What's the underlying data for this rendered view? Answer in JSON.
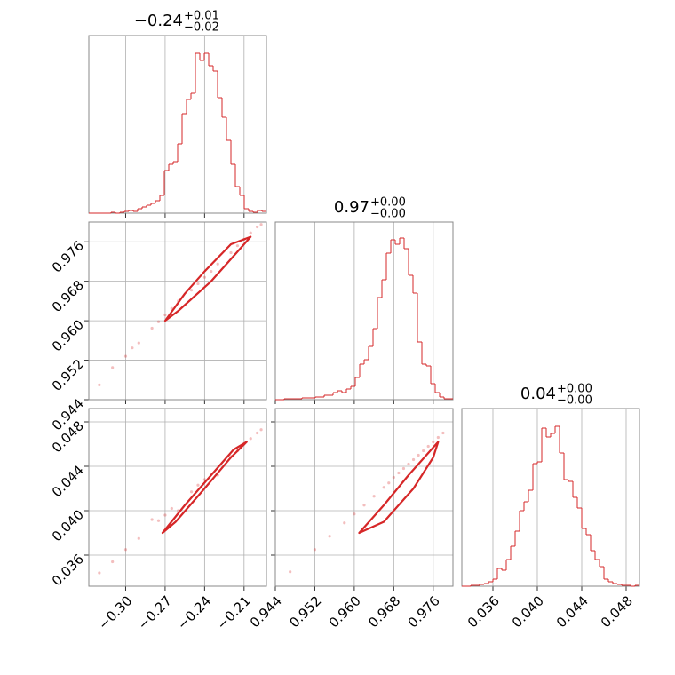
{
  "chart_data": {
    "type": "corner",
    "color": "#d62728",
    "grid": true,
    "params": [
      {
        "title": {
          "value": "−0.24",
          "upper": "+0.01",
          "lower": "−0.02"
        },
        "lim": [
          -0.328,
          -0.193
        ],
        "ticks": [
          {
            "value": -0.3,
            "label": "−0.30"
          },
          {
            "value": -0.27,
            "label": "−0.27"
          },
          {
            "value": -0.24,
            "label": "−0.24"
          },
          {
            "value": -0.21,
            "label": "−0.21"
          }
        ]
      },
      {
        "title": {
          "value": "0.97",
          "upper": "+0.00",
          "lower": "−0.00"
        },
        "lim": [
          0.944,
          0.98
        ],
        "ticks": [
          0.944,
          0.952,
          {
            "value": 0.96,
            "label": "0.960"
          },
          0.968,
          0.976
        ]
      },
      {
        "title": {
          "value": "0.04",
          "upper": "+0.00",
          "lower": "−0.00"
        },
        "lim": [
          0.0332,
          0.0492
        ],
        "ticks": [
          0.036,
          {
            "value": 0.04,
            "label": "0.040"
          },
          0.044,
          0.048
        ]
      }
    ],
    "histograms": [
      {
        "ylim": [
          0,
          200
        ],
        "bins": [
          -0.328,
          -0.324625,
          -0.32125,
          -0.317875,
          -0.3145,
          -0.311125,
          -0.30775,
          -0.304375,
          -0.301,
          -0.297625,
          -0.29425,
          -0.290875,
          -0.2875,
          -0.284125,
          -0.28075,
          -0.277375,
          -0.274,
          -0.270625,
          -0.26725,
          -0.263875,
          -0.2605,
          -0.257125,
          -0.25375,
          -0.250375,
          -0.247,
          -0.243625,
          -0.24025,
          -0.236875,
          -0.2335,
          -0.230125,
          -0.22675,
          -0.223375,
          -0.22,
          -0.216625,
          -0.21325,
          -0.209875,
          -0.2065,
          -0.203125,
          -0.19975,
          -0.196375,
          -0.193
        ],
        "values": [
          0,
          0,
          0,
          0,
          0,
          1,
          0,
          1,
          2,
          3,
          2,
          5,
          7,
          9,
          11,
          14,
          20,
          48,
          55,
          58,
          78,
          112,
          128,
          135,
          180,
          172,
          180,
          166,
          160,
          130,
          108,
          82,
          55,
          30,
          20,
          5,
          2,
          1,
          3,
          2
        ]
      },
      {
        "ylim": [
          0,
          200
        ],
        "bins": [
          0.944,
          0.9449,
          0.9458,
          0.9467,
          0.9476,
          0.9485,
          0.9494,
          0.9503,
          0.9512,
          0.9521,
          0.953,
          0.9539,
          0.9548,
          0.9557,
          0.9566,
          0.9575,
          0.9584,
          0.9593,
          0.9602,
          0.9611,
          0.962,
          0.9629,
          0.9638,
          0.9647,
          0.9656,
          0.9665,
          0.9674,
          0.9683,
          0.9692,
          0.9701,
          0.971,
          0.9719,
          0.9728,
          0.9737,
          0.9746,
          0.9755,
          0.9764,
          0.9773,
          0.9782,
          0.9791,
          0.98
        ],
        "values": [
          0,
          0,
          1,
          1,
          1,
          1,
          2,
          2,
          2,
          3,
          3,
          5,
          5,
          8,
          10,
          8,
          12,
          15,
          25,
          40,
          45,
          60,
          80,
          115,
          135,
          165,
          180,
          175,
          182,
          170,
          140,
          120,
          65,
          40,
          38,
          18,
          8,
          3,
          1,
          1
        ]
      },
      {
        "ylim": [
          0,
          200
        ],
        "bins": [
          0.0332,
          0.0336,
          0.034,
          0.0344,
          0.0348,
          0.0352,
          0.0356,
          0.036,
          0.0364,
          0.0368,
          0.0372,
          0.0376,
          0.038,
          0.0384,
          0.0388,
          0.0392,
          0.0396,
          0.04,
          0.0404,
          0.0408,
          0.0412,
          0.0416,
          0.042,
          0.0424,
          0.0428,
          0.0432,
          0.0436,
          0.044,
          0.0444,
          0.0448,
          0.0452,
          0.0456,
          0.046,
          0.0464,
          0.0468,
          0.0472,
          0.0476,
          0.048,
          0.0484,
          0.0488,
          0.0492
        ],
        "values": [
          0,
          0,
          1,
          1,
          2,
          3,
          5,
          8,
          20,
          18,
          30,
          45,
          62,
          85,
          95,
          108,
          138,
          140,
          178,
          168,
          172,
          180,
          150,
          120,
          118,
          100,
          88,
          65,
          58,
          40,
          30,
          22,
          8,
          5,
          3,
          2,
          1,
          1,
          0,
          1
        ]
      }
    ],
    "pairs": [
      {
        "x": [
          -0.32,
          -0.31,
          -0.3,
          -0.295,
          -0.29,
          -0.28,
          -0.275,
          -0.27,
          -0.265,
          -0.26,
          -0.25,
          -0.245,
          -0.24,
          -0.235,
          -0.23,
          -0.22,
          -0.215,
          -0.21,
          -0.205,
          -0.2,
          -0.197
        ],
        "y": [
          0.947,
          0.9505,
          0.9528,
          0.9545,
          0.9555,
          0.9585,
          0.9598,
          0.9612,
          0.9625,
          0.964,
          0.9662,
          0.9675,
          0.9688,
          0.97,
          0.9715,
          0.9738,
          0.9752,
          0.9765,
          0.9778,
          0.979,
          0.9795
        ],
        "contour": {
          "x": [
            -0.27,
            -0.255,
            -0.24,
            -0.22,
            -0.205,
            -0.215,
            -0.235,
            -0.26
          ],
          "y": [
            0.96,
            0.9655,
            0.97,
            0.9755,
            0.977,
            0.974,
            0.968,
            0.962
          ]
        }
      },
      {
        "x": [
          -0.32,
          -0.31,
          -0.3,
          -0.29,
          -0.28,
          -0.275,
          -0.27,
          -0.265,
          -0.26,
          -0.25,
          -0.245,
          -0.24,
          -0.235,
          -0.23,
          -0.22,
          -0.215,
          -0.21,
          -0.205,
          -0.2,
          -0.197
        ],
        "y": [
          0.0344,
          0.0354,
          0.0365,
          0.0375,
          0.0392,
          0.0391,
          0.0396,
          0.0402,
          0.04,
          0.0417,
          0.0423,
          0.0428,
          0.0433,
          0.0432,
          0.0449,
          0.0454,
          0.046,
          0.0465,
          0.047,
          0.0473
        ],
        "contour": {
          "x": [
            -0.272,
            -0.255,
            -0.235,
            -0.218,
            -0.208,
            -0.22,
            -0.24,
            -0.262
          ],
          "y": [
            0.038,
            0.0405,
            0.0432,
            0.0455,
            0.0462,
            0.0448,
            0.042,
            0.039
          ]
        }
      },
      {
        "x": [
          0.947,
          0.952,
          0.955,
          0.958,
          0.96,
          0.962,
          0.964,
          0.966,
          0.967,
          0.968,
          0.969,
          0.97,
          0.971,
          0.972,
          0.973,
          0.974,
          0.975,
          0.976,
          0.977,
          0.978
        ],
        "y": [
          0.0345,
          0.0365,
          0.0377,
          0.0389,
          0.0397,
          0.0405,
          0.0413,
          0.0421,
          0.0425,
          0.043,
          0.0434,
          0.0438,
          0.0442,
          0.0446,
          0.045,
          0.0454,
          0.0458,
          0.0462,
          0.0466,
          0.047
        ],
        "contour": {
          "x": [
            0.961,
            0.966,
            0.971,
            0.975,
            0.977,
            0.976,
            0.972,
            0.966
          ],
          "y": [
            0.038,
            0.0405,
            0.0432,
            0.0452,
            0.0462,
            0.0448,
            0.042,
            0.039
          ]
        }
      }
    ]
  }
}
